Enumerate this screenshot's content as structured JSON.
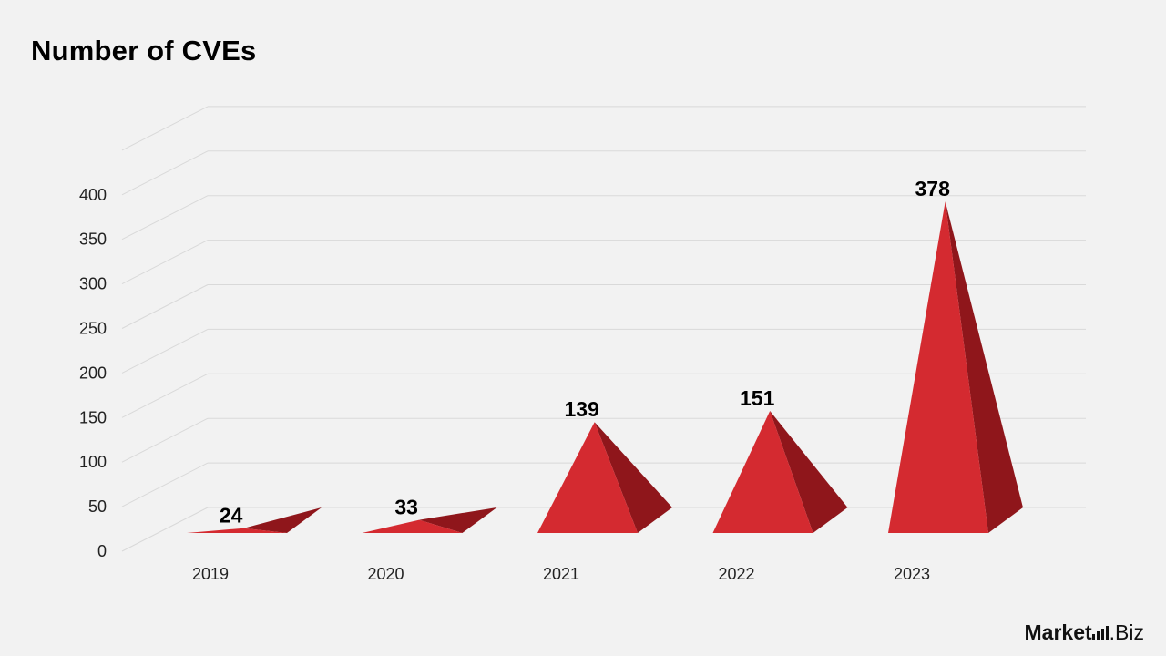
{
  "chart_data": {
    "type": "bar",
    "title": "Number of CVEs",
    "categories": [
      "2019",
      "2020",
      "2021",
      "2022",
      "2023"
    ],
    "values": [
      24,
      33,
      139,
      151,
      378
    ],
    "ylim": [
      0,
      450
    ],
    "yticks": [
      0,
      50,
      100,
      150,
      200,
      250,
      300,
      350,
      400
    ],
    "xlabel": "",
    "ylabel": "",
    "grid": true,
    "legend": "none",
    "style": "3d-pyramid",
    "colors": {
      "front": "#d42a30",
      "side": "#8f161b",
      "grid": "#d9d9d9"
    }
  },
  "brand": {
    "name_bold": "Market",
    "name_regular": ".Biz"
  }
}
